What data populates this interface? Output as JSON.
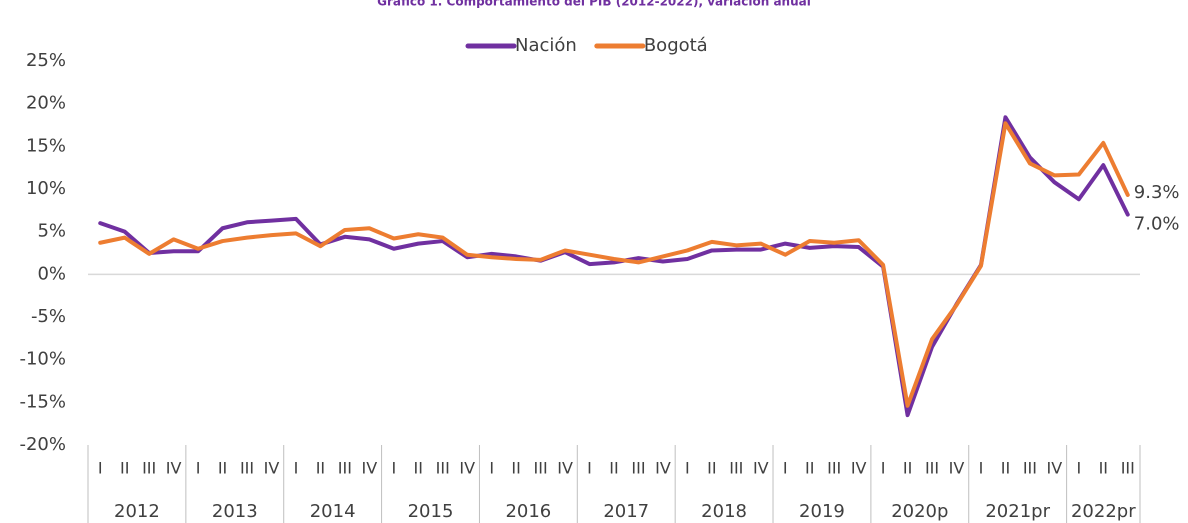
{
  "chart_data": {
    "type": "line",
    "title": "Gráfico 1. Comportamiento del PIB (2012-2022), variación anual",
    "groups": [
      {
        "label": "2012",
        "categories": [
          "I",
          "II",
          "III",
          "IV"
        ]
      },
      {
        "label": "2013",
        "categories": [
          "I",
          "II",
          "III",
          "IV"
        ]
      },
      {
        "label": "2014",
        "categories": [
          "I",
          "II",
          "III",
          "IV"
        ]
      },
      {
        "label": "2015",
        "categories": [
          "I",
          "II",
          "III",
          "IV"
        ]
      },
      {
        "label": "2016",
        "categories": [
          "I",
          "II",
          "III",
          "IV"
        ]
      },
      {
        "label": "2017",
        "categories": [
          "I",
          "II",
          "III",
          "IV"
        ]
      },
      {
        "label": "2018",
        "categories": [
          "I",
          "II",
          "III",
          "IV"
        ]
      },
      {
        "label": "2019",
        "categories": [
          "I",
          "II",
          "III",
          "IV"
        ]
      },
      {
        "label": "2020p",
        "categories": [
          "I",
          "II",
          "III",
          "IV"
        ]
      },
      {
        "label": "2021pr",
        "categories": [
          "I",
          "II",
          "III",
          "IV"
        ]
      },
      {
        "label": "2022pr",
        "categories": [
          "I",
          "II",
          "III"
        ]
      }
    ],
    "series": [
      {
        "name": "Nación",
        "color": "#7030a0",
        "values": [
          6.0,
          5.0,
          2.5,
          2.7,
          2.7,
          5.4,
          6.1,
          6.3,
          6.5,
          3.5,
          4.4,
          4.1,
          3.0,
          3.6,
          3.9,
          2.0,
          2.4,
          2.1,
          1.6,
          2.6,
          1.2,
          1.4,
          1.9,
          1.5,
          1.8,
          2.8,
          2.9,
          2.9,
          3.6,
          3.1,
          3.3,
          3.2,
          0.9,
          -16.5,
          -8.5,
          -3.5,
          1.1,
          18.4,
          13.7,
          10.8,
          8.8,
          12.8,
          7.0
        ],
        "value_labels": [
          null,
          null,
          null,
          null,
          null,
          null,
          null,
          null,
          null,
          null,
          null,
          null,
          null,
          null,
          null,
          null,
          null,
          null,
          null,
          null,
          null,
          null,
          null,
          null,
          null,
          null,
          null,
          null,
          null,
          null,
          null,
          null,
          null,
          null,
          null,
          null,
          null,
          null,
          null,
          null,
          null,
          null,
          "7.0%"
        ]
      },
      {
        "name": "Bogotá",
        "color": "#ed7d31",
        "values": [
          3.7,
          4.3,
          2.4,
          4.1,
          3.0,
          3.9,
          4.3,
          4.6,
          4.8,
          3.3,
          5.2,
          5.4,
          4.2,
          4.7,
          4.3,
          2.3,
          2.0,
          1.8,
          1.7,
          2.8,
          2.3,
          1.8,
          1.4,
          2.1,
          2.8,
          3.8,
          3.4,
          3.6,
          2.3,
          3.9,
          3.7,
          4.0,
          1.1,
          -15.4,
          -7.6,
          -3.6,
          1.0,
          17.7,
          13.0,
          11.6,
          11.7,
          15.4,
          9.3
        ],
        "value_labels": [
          null,
          null,
          null,
          null,
          null,
          null,
          null,
          null,
          null,
          null,
          null,
          null,
          null,
          null,
          null,
          null,
          null,
          null,
          null,
          null,
          null,
          null,
          null,
          null,
          null,
          null,
          null,
          null,
          null,
          null,
          null,
          null,
          null,
          null,
          null,
          null,
          null,
          null,
          null,
          null,
          null,
          null,
          "9.3%"
        ]
      }
    ],
    "ylim": [
      -20,
      25
    ],
    "yticks": [
      {
        "value": -20,
        "label": "-20%"
      },
      {
        "value": -15,
        "label": "-15%"
      },
      {
        "value": -10,
        "label": "-10%"
      },
      {
        "value": -5,
        "label": "-5%"
      },
      {
        "value": 0,
        "label": "0%"
      },
      {
        "value": 5,
        "label": "5%"
      },
      {
        "value": 10,
        "label": "10%"
      },
      {
        "value": 15,
        "label": "15%"
      },
      {
        "value": 20,
        "label": "20%"
      },
      {
        "value": 25,
        "label": "25%"
      }
    ],
    "legend": "top"
  }
}
